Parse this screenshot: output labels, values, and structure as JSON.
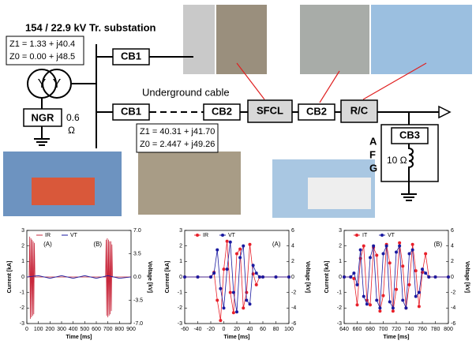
{
  "diagram": {
    "title": "154 / 22.9 kV Tr. substation",
    "source_z1": "Z1 = 1.33 + j40.4",
    "source_z0": "Z0 = 0.00 + j48.5",
    "cb1_top": "CB1",
    "cb1_main": "CB1",
    "ngr": "NGR",
    "ngr_value": "0.6",
    "ngr_unit": "Ω",
    "cable": "Underground cable",
    "cb2_left": "CB2",
    "sfcl": "SFCL",
    "cb2_right": "CB2",
    "rc": "R/C",
    "cb3": "CB3",
    "cable_z1": "Z1 = 40.31 + j41.70",
    "cable_z0": "Z0 = 2.447 + j49.26",
    "fault_a": "A",
    "fault_f": "F",
    "fault_g": "G",
    "fault_r": "10 Ω"
  },
  "chart_data": [
    {
      "type": "line",
      "xlabel": "Time [ms]",
      "ylabel": "Current [kA]",
      "y2label": "Voltage [kV]",
      "annotations": [
        "(A)",
        "(B)"
      ],
      "xlim": [
        0,
        900
      ],
      "xticks": [
        0,
        100,
        200,
        300,
        400,
        500,
        600,
        700,
        800,
        900
      ],
      "ylim": [
        -3,
        3
      ],
      "yticks": [
        -3,
        -2,
        -1,
        0,
        1,
        2,
        3
      ],
      "y2lim": [
        -7,
        7
      ],
      "y2ticks": [
        {
          "value": -7,
          "label": "-7.0"
        },
        {
          "value": -3.5,
          "label": "-3.5"
        },
        {
          "value": 0,
          "label": "0.0"
        },
        {
          "value": 3.5,
          "label": "3.5"
        },
        {
          "value": 7,
          "label": "7.0"
        }
      ],
      "series": [
        {
          "name": "IR",
          "color": "#c8283c",
          "markers": false,
          "x": [
            0,
            20,
            25,
            30,
            35,
            40,
            45,
            50,
            55,
            60,
            65,
            70,
            680,
            685,
            690,
            695,
            700,
            705,
            710,
            715,
            720,
            725,
            730,
            735,
            740,
            900
          ],
          "values": [
            0,
            0,
            2.6,
            -2.7,
            2.5,
            -2.6,
            2.4,
            -2.5,
            2.3,
            -2.4,
            2.2,
            0,
            0,
            2.4,
            -2.5,
            2.5,
            -2.6,
            2.4,
            -2.5,
            2.3,
            -2.4,
            2.3,
            -2.2,
            2.1,
            0,
            0
          ]
        },
        {
          "name": "VT",
          "color": "#1a1aa0",
          "markers": false,
          "axis": "y2",
          "x": [
            0,
            100,
            200,
            300,
            400,
            500,
            600,
            700,
            800,
            900
          ],
          "values": [
            0,
            0.2,
            -0.2,
            0.2,
            -0.2,
            0.2,
            -0.2,
            0.2,
            -0.2,
            0
          ]
        }
      ]
    },
    {
      "type": "line",
      "xlabel": "Time [ms]",
      "ylabel": "Current [kA]",
      "y2label": "Voltage [kV]",
      "annotations": [
        "(A)"
      ],
      "xlim": [
        -60,
        100
      ],
      "xticks": [
        -60,
        -40,
        -20,
        0,
        20,
        40,
        60,
        80,
        100
      ],
      "ylim": [
        -3,
        3
      ],
      "yticks": [
        -3,
        -2,
        -1,
        0,
        1,
        2,
        3
      ],
      "y2lim": [
        -6,
        6
      ],
      "y2ticks": [
        -6,
        -4,
        -2,
        0,
        2,
        4,
        6
      ],
      "series": [
        {
          "name": "IR",
          "color": "#e8202a",
          "markers": true,
          "x": [
            -60,
            -40,
            -20,
            -15,
            -10,
            -5,
            0,
            5,
            10,
            15,
            20,
            25,
            30,
            35,
            40,
            45,
            50,
            55,
            60,
            80,
            100
          ],
          "values": [
            0,
            0,
            0,
            0.3,
            -1.5,
            -2.8,
            0.5,
            2.3,
            -1.0,
            -2.3,
            1.5,
            1.8,
            -2.0,
            -1.0,
            2.1,
            0.2,
            -0.5,
            0,
            0,
            0,
            0
          ]
        },
        {
          "name": "VT",
          "color": "#1a1aa0",
          "markers": true,
          "axis": "y2",
          "x": [
            -60,
            -40,
            -20,
            -15,
            -10,
            -5,
            0,
            5,
            10,
            15,
            20,
            25,
            30,
            35,
            40,
            45,
            50,
            55,
            60,
            80,
            100
          ],
          "values": [
            0,
            0,
            0,
            0.5,
            3.5,
            -1.5,
            -4.0,
            1.0,
            4.5,
            -2.0,
            -4.5,
            2.5,
            4.0,
            -3.0,
            -3.5,
            1.5,
            0.5,
            0,
            0,
            0,
            0
          ]
        }
      ]
    },
    {
      "type": "line",
      "xlabel": "Time [ms]",
      "ylabel": "Current [kA]",
      "y2label": "Voltage [kV]",
      "annotations": [
        "(B)"
      ],
      "xlim": [
        640,
        800
      ],
      "xticks": [
        640,
        660,
        680,
        700,
        720,
        740,
        760,
        780,
        800
      ],
      "ylim": [
        -3,
        3
      ],
      "yticks": [
        -3,
        -2,
        -1,
        0,
        1,
        2,
        3
      ],
      "y2lim": [
        -6,
        6
      ],
      "y2ticks": [
        -6,
        -4,
        -2,
        0,
        2,
        4,
        6
      ],
      "series": [
        {
          "name": "IT",
          "color": "#e8202a",
          "markers": true,
          "x": [
            640,
            650,
            655,
            660,
            665,
            670,
            675,
            680,
            685,
            690,
            695,
            700,
            705,
            710,
            715,
            720,
            725,
            730,
            735,
            740,
            745,
            750,
            755,
            760,
            765,
            770,
            780,
            800
          ],
          "values": [
            0,
            0,
            -0.1,
            -1.8,
            1.2,
            2.0,
            -1.5,
            -1.8,
            1.9,
            1.4,
            -2.2,
            -1.2,
            2.1,
            0.9,
            -2.2,
            -0.8,
            2.2,
            0.7,
            -2.0,
            -0.5,
            2.1,
            0.4,
            -1.9,
            0.3,
            1.5,
            0,
            0,
            0
          ]
        },
        {
          "name": "VT",
          "color": "#1a1aa0",
          "markers": true,
          "axis": "y2",
          "x": [
            640,
            650,
            655,
            660,
            665,
            670,
            675,
            680,
            685,
            690,
            695,
            700,
            705,
            710,
            715,
            720,
            725,
            730,
            735,
            740,
            745,
            750,
            755,
            760,
            765,
            770,
            780,
            800
          ],
          "values": [
            0,
            0,
            0.5,
            -1.0,
            3.5,
            -2.5,
            -3.5,
            2.5,
            4.0,
            -3.0,
            -4.0,
            3.0,
            4.0,
            -3.2,
            -4.0,
            3.2,
            4.0,
            -3.0,
            -4.0,
            3.0,
            3.5,
            -2.5,
            -2.0,
            1.0,
            0.5,
            0,
            0,
            0
          ]
        }
      ]
    }
  ]
}
